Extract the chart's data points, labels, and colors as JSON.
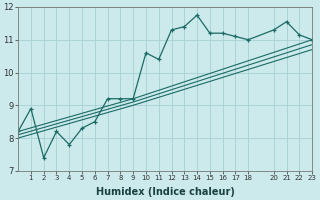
{
  "xlabel": "Humidex (Indice chaleur)",
  "bg_color": "#cce9ec",
  "grid_color": "#aad3d8",
  "line_color": "#1a6b65",
  "xlim": [
    0,
    23
  ],
  "ylim": [
    7,
    12
  ],
  "yticks": [
    7,
    8,
    9,
    10,
    11,
    12
  ],
  "xticks": [
    1,
    2,
    3,
    4,
    5,
    6,
    7,
    8,
    9,
    10,
    11,
    12,
    13,
    14,
    15,
    16,
    17,
    18,
    20,
    21,
    22,
    23
  ],
  "main_x": [
    0,
    1,
    2,
    3,
    4,
    5,
    6,
    7,
    8,
    9,
    10,
    11,
    12,
    13,
    14,
    15,
    16,
    17,
    18,
    20,
    21,
    22,
    23
  ],
  "main_y": [
    8.2,
    8.9,
    7.4,
    8.2,
    7.8,
    8.3,
    8.5,
    9.2,
    9.2,
    9.2,
    10.6,
    10.4,
    11.3,
    11.4,
    11.75,
    11.2,
    11.2,
    11.1,
    11.0,
    11.3,
    11.55,
    11.15,
    11.0
  ],
  "trend1_x": [
    0,
    9,
    23
  ],
  "trend1_y": [
    8.2,
    9.2,
    11.0
  ],
  "trend2_x": [
    0,
    9,
    23
  ],
  "trend2_y": [
    8.1,
    9.1,
    10.85
  ],
  "trend3_x": [
    0,
    9,
    23
  ],
  "trend3_y": [
    8.0,
    9.0,
    10.7
  ],
  "fontsize_ticks": 5,
  "fontsize_xlabel": 7
}
